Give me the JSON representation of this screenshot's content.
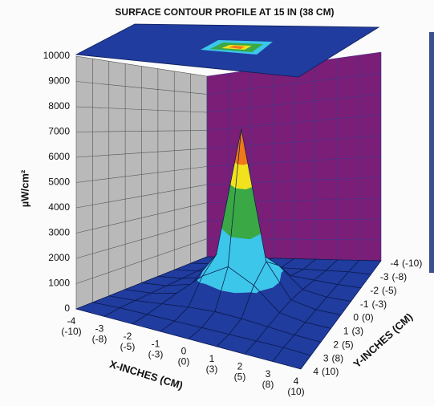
{
  "chart_data": {
    "type": "surface3d",
    "title": "SURFACE CONTOUR PROFILE AT 15 IN (38 CM)",
    "x_label": "X-INCHES (CM)",
    "y_label": "Y-INCHES (CM)",
    "z_label": "µW/cm²",
    "xlim": [
      -4,
      4
    ],
    "ylim": [
      -4,
      4
    ],
    "zlim": [
      0,
      10000
    ],
    "xticks": [
      -4,
      -3,
      -2,
      -1,
      0,
      1,
      2,
      3,
      4
    ],
    "xticks_cm": [
      "(-10)",
      "(-8)",
      "(-5)",
      "(-3)",
      "(0)",
      "(3)",
      "(5)",
      "(8)",
      "(10)"
    ],
    "yticks": [
      -4,
      -3,
      -2,
      -1,
      0,
      1,
      2,
      3,
      4
    ],
    "yticks_cm": [
      "(-10)",
      "(-8)",
      "(-5)",
      "(-3)",
      "(0)",
      "(3)",
      "(5)",
      "(8)",
      "(10)"
    ],
    "zticks": [
      0,
      1000,
      2000,
      3000,
      4000,
      5000,
      6000,
      7000,
      8000,
      9000,
      10000
    ],
    "z": [
      [
        0,
        0,
        0,
        0,
        0,
        0,
        0,
        0,
        0
      ],
      [
        0,
        50,
        50,
        50,
        50,
        50,
        50,
        50,
        0
      ],
      [
        0,
        50,
        150,
        250,
        300,
        250,
        150,
        50,
        0
      ],
      [
        0,
        50,
        250,
        1200,
        1800,
        1200,
        250,
        50,
        0
      ],
      [
        0,
        50,
        300,
        1800,
        7500,
        1800,
        300,
        50,
        0
      ],
      [
        0,
        50,
        250,
        1200,
        1800,
        1200,
        250,
        50,
        0
      ],
      [
        0,
        50,
        150,
        250,
        300,
        250,
        150,
        50,
        0
      ],
      [
        0,
        50,
        50,
        50,
        50,
        50,
        50,
        50,
        0
      ],
      [
        0,
        0,
        0,
        0,
        0,
        0,
        0,
        0,
        0
      ]
    ],
    "contour_levels": [
      1000,
      3000,
      5000,
      6000
    ],
    "contour_colors": [
      "#1f3c9e",
      "#3cc6ea",
      "#3aa845",
      "#f2e21e",
      "#f07818"
    ],
    "wall_colors": [
      "#b9b9b9",
      "#7a1e78"
    ],
    "grid": true
  }
}
